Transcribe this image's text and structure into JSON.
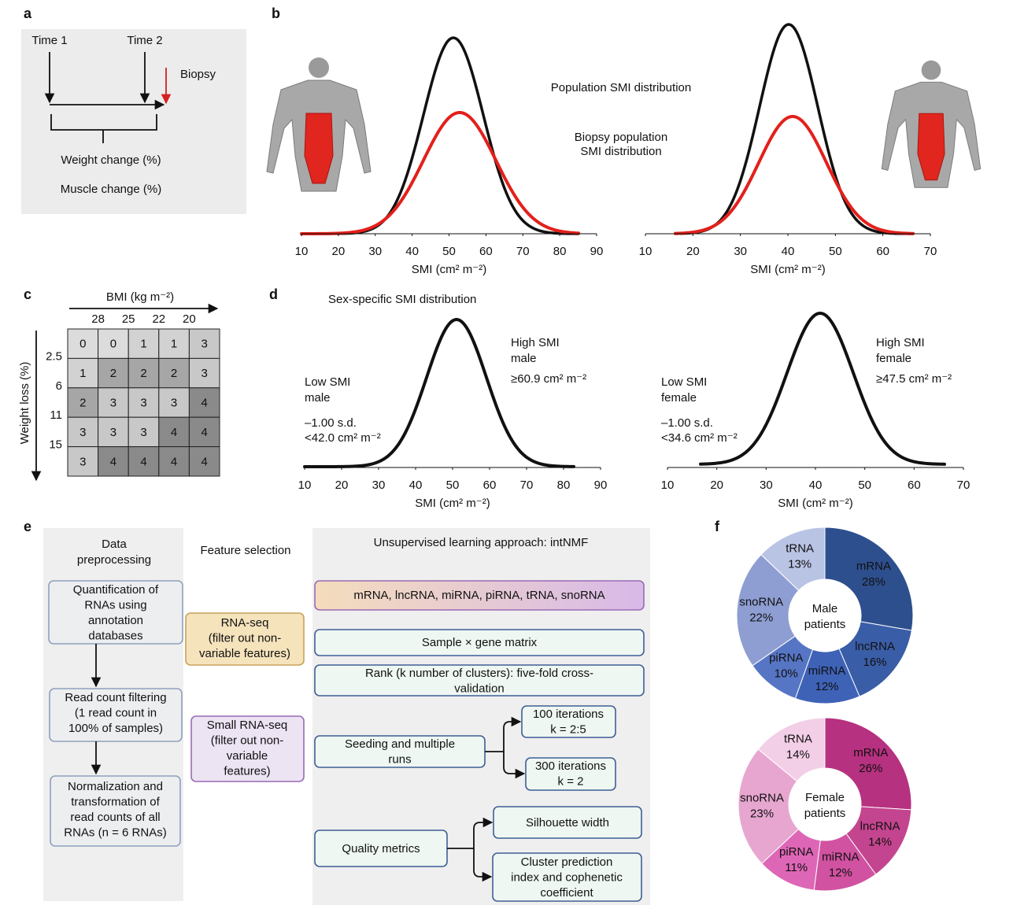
{
  "panel_a": {
    "label": "a",
    "time1": "Time 1",
    "time2": "Time 2",
    "biopsy": "Biopsy",
    "weight_change": "Weight change (%)",
    "muscle_change": "Muscle change (%)"
  },
  "panel_b": {
    "label": "b",
    "population": "Population SMI distribution",
    "biopsy_population": [
      "Biopsy population",
      "SMI distribution"
    ],
    "plots": [
      {
        "xlim": [
          10,
          90
        ],
        "xticks": [
          10,
          20,
          30,
          40,
          50,
          60,
          70,
          80,
          90
        ],
        "xlabel": "SMI (cm² m⁻²)"
      },
      {
        "xlim": [
          10,
          70
        ],
        "xticks": [
          10,
          20,
          30,
          40,
          50,
          60,
          70
        ],
        "xlabel": "SMI (cm² m⁻²)"
      }
    ]
  },
  "panel_c": {
    "label": "c",
    "x_label": "BMI (kg m⁻²)",
    "y_label": "Weight loss (%)",
    "columns": [
      "28",
      "25",
      "22",
      "20"
    ],
    "rows": [
      "2.5",
      "6",
      "11",
      "15"
    ],
    "cells": [
      [
        0,
        0,
        1,
        1,
        3
      ],
      [
        1,
        2,
        2,
        2,
        3
      ],
      [
        2,
        3,
        3,
        3,
        4
      ],
      [
        3,
        3,
        3,
        4,
        4
      ],
      [
        3,
        4,
        4,
        4,
        4
      ]
    ],
    "level_colors": [
      "#dcdcdc",
      "#d2d2d2",
      "#a6a6a6",
      "#c8c8c8",
      "#8a8a8a"
    ]
  },
  "panel_d": {
    "label": "d",
    "title": "Sex-specific SMI distribution",
    "plots": [
      {
        "low": [
          "Low SMI",
          "male"
        ],
        "low_sd": "–1.00 s.d.",
        "low_cut": "<42.0 cm² m⁻²",
        "high": [
          "High SMI",
          "male"
        ],
        "high_cut": "≥60.9 cm² m⁻²",
        "xlim": [
          10,
          90
        ],
        "xticks": [
          10,
          20,
          30,
          40,
          50,
          60,
          70,
          80,
          90
        ],
        "xlabel": "SMI (cm² m⁻²)"
      },
      {
        "low": [
          "Low SMI",
          "female"
        ],
        "low_sd": "–1.00 s.d.",
        "low_cut": "<34.6 cm² m⁻²",
        "high": [
          "High SMI",
          "female"
        ],
        "high_cut": "≥47.5 cm² m⁻²",
        "xlim": [
          10,
          70
        ],
        "xticks": [
          10,
          20,
          30,
          40,
          50,
          60,
          70
        ],
        "xlabel": "SMI (cm² m⁻²)"
      }
    ]
  },
  "panel_e": {
    "label": "e",
    "preprocessing": {
      "title": [
        "Data",
        "preprocessing"
      ],
      "steps": [
        [
          "Quantification of",
          "RNAs using",
          "annotation",
          "databases"
        ],
        [
          "Read count filtering",
          "(1 read count in",
          "100% of samples)"
        ],
        [
          "Normalization and",
          "transformation of",
          "read counts of all",
          "RNAs (n = 6 RNAs)"
        ]
      ]
    },
    "feature_selection": {
      "title": "Feature selection",
      "boxes": [
        [
          "RNA-seq",
          "(filter out non-",
          "variable features)"
        ],
        [
          "Small RNA-seq",
          "(filter out non-",
          "variable",
          "features)"
        ]
      ]
    },
    "learning": {
      "title": "Unsupervised learning approach: intNMF",
      "inputs": "mRNA, lncRNA, miRNA, piRNA, tRNA, snoRNA",
      "matrix": "Sample × gene matrix",
      "rank": [
        "Rank (k number of clusters): five-fold cross-",
        "validation"
      ],
      "seeding": [
        "Seeding and multiple",
        "runs"
      ],
      "runs": [
        [
          "100 iterations",
          "k = 2:5"
        ],
        [
          "300 iterations",
          "k = 2"
        ]
      ],
      "quality": "Quality metrics",
      "metrics": [
        [
          "Silhouette width"
        ],
        [
          "Cluster prediction",
          "index and cophenetic",
          "coefficient"
        ]
      ]
    }
  },
  "panel_f": {
    "label": "f"
  },
  "chart_data": [
    {
      "type": "pie",
      "center": [
        "Male",
        "patients"
      ],
      "categories": [
        "mRNA",
        "lncRNA",
        "miRNA",
        "piRNA",
        "snoRNA",
        "tRNA"
      ],
      "values": [
        28,
        16,
        12,
        10,
        22,
        13
      ],
      "value_labels": [
        "28%",
        "16%",
        "12%",
        "10%",
        "22%",
        "13%"
      ],
      "colors": [
        "#2e4f8e",
        "#3a5da7",
        "#3e62b6",
        "#5675c4",
        "#8e9ed2",
        "#b9c3e4"
      ],
      "text_colors": [
        "#ffffff",
        "#ffffff",
        "#ffffff",
        "#111111",
        "#111111",
        "#111111"
      ]
    },
    {
      "type": "pie",
      "center": [
        "Female",
        "patients"
      ],
      "categories": [
        "mRNA",
        "lncRNA",
        "miRNA",
        "piRNA",
        "snoRNA",
        "tRNA"
      ],
      "values": [
        26,
        14,
        12,
        11,
        23,
        14
      ],
      "value_labels": [
        "26%",
        "14%",
        "12%",
        "11%",
        "23%",
        "14%"
      ],
      "colors": [
        "#b6317f",
        "#c4458f",
        "#d052a1",
        "#de66b6",
        "#e7a6d0",
        "#f3cfe7"
      ],
      "text_colors": [
        "#ffffff",
        "#ffffff",
        "#ffffff",
        "#ffffff",
        "#111111",
        "#111111"
      ]
    }
  ]
}
